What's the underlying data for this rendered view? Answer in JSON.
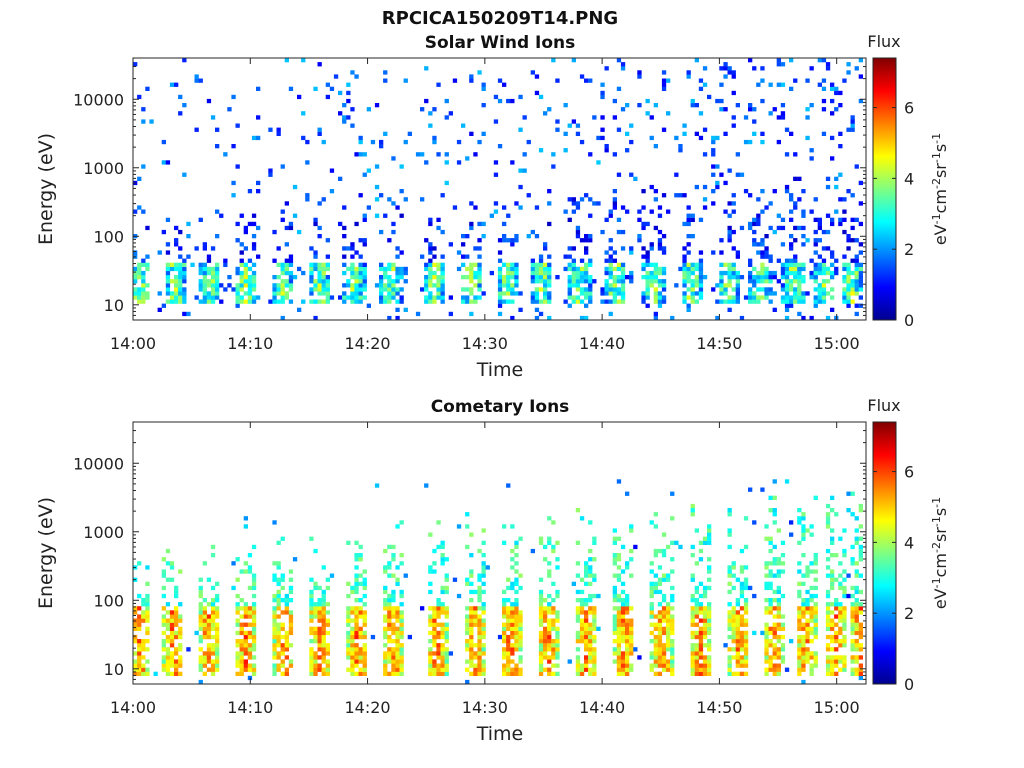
{
  "figure_title": "RPCICA150209T14.PNG",
  "colors": {
    "colormap": [
      "#00008f",
      "#0000ff",
      "#0080ff",
      "#00ffff",
      "#80ff80",
      "#ffff00",
      "#ff8000",
      "#ff0000",
      "#800000"
    ]
  },
  "chart_data": [
    {
      "type": "heatmap",
      "title": "Solar Wind Ions",
      "xlabel": "Time",
      "ylabel": "Energy (eV)",
      "x_ticks": [
        "14:00",
        "14:10",
        "14:20",
        "14:30",
        "14:40",
        "14:50",
        "15:00"
      ],
      "x_tick_minutes": [
        0,
        10,
        20,
        30,
        40,
        50,
        60
      ],
      "x_range_minutes": [
        0,
        62.5
      ],
      "y_scale": "log",
      "y_ticks": [
        "10",
        "100",
        "1000",
        "10000"
      ],
      "y_tick_values": [
        10,
        100,
        1000,
        10000
      ],
      "y_range": [
        6,
        40000
      ],
      "grid": false,
      "colorbar": {
        "label": "Flux",
        "units_label": "eV-1cm-2sr-1s-1",
        "ticks": [
          "0",
          "2",
          "4",
          "6"
        ],
        "tick_values": [
          0,
          2,
          4,
          6
        ],
        "range": [
          0,
          7.4
        ]
      },
      "pattern": {
        "bursts_at_minutes": [
          0.6,
          3.6,
          6.6,
          9.6,
          12.8,
          15.9,
          18.9,
          22.0,
          25.7,
          28.9,
          31.9,
          34.9,
          38.1,
          41.2,
          44.4,
          47.6,
          50.8,
          53.5,
          56.3,
          59.0,
          61.3
        ],
        "core_energy_eV": [
          14,
          30
        ],
        "core_flux": [
          2.5,
          4.8
        ],
        "scatter_max_eV": 40000,
        "scatter_flux": [
          0.8,
          2.4
        ]
      }
    },
    {
      "type": "heatmap",
      "title": "Cometary Ions",
      "xlabel": "Time",
      "ylabel": "Energy (eV)",
      "x_ticks": [
        "14:00",
        "14:10",
        "14:20",
        "14:30",
        "14:40",
        "14:50",
        "15:00"
      ],
      "x_tick_minutes": [
        0,
        10,
        20,
        30,
        40,
        50,
        60
      ],
      "x_range_minutes": [
        0,
        62.5
      ],
      "y_scale": "log",
      "y_ticks": [
        "10",
        "100",
        "1000",
        "10000"
      ],
      "y_tick_values": [
        10,
        100,
        1000,
        10000
      ],
      "y_range": [
        6,
        40000
      ],
      "grid": false,
      "colorbar": {
        "label": "Flux",
        "units_label": "eV-1cm-2sr-1s-1",
        "ticks": [
          "0",
          "2",
          "4",
          "6"
        ],
        "tick_values": [
          0,
          2,
          4,
          6
        ],
        "range": [
          0,
          7.4
        ]
      },
      "pattern": {
        "bursts_at_minutes": [
          0.6,
          3.4,
          6.5,
          9.6,
          12.9,
          16.0,
          19.1,
          22.2,
          25.9,
          29.1,
          32.2,
          35.4,
          38.6,
          41.9,
          45.1,
          48.4,
          51.7,
          54.6,
          57.4,
          59.9,
          62.0
        ],
        "core_energy_eV": [
          10,
          60
        ],
        "core_flux": [
          4.5,
          6.4
        ],
        "scatter_max_eV": 6000,
        "scatter_flux": [
          0.8,
          2.6
        ]
      }
    }
  ]
}
